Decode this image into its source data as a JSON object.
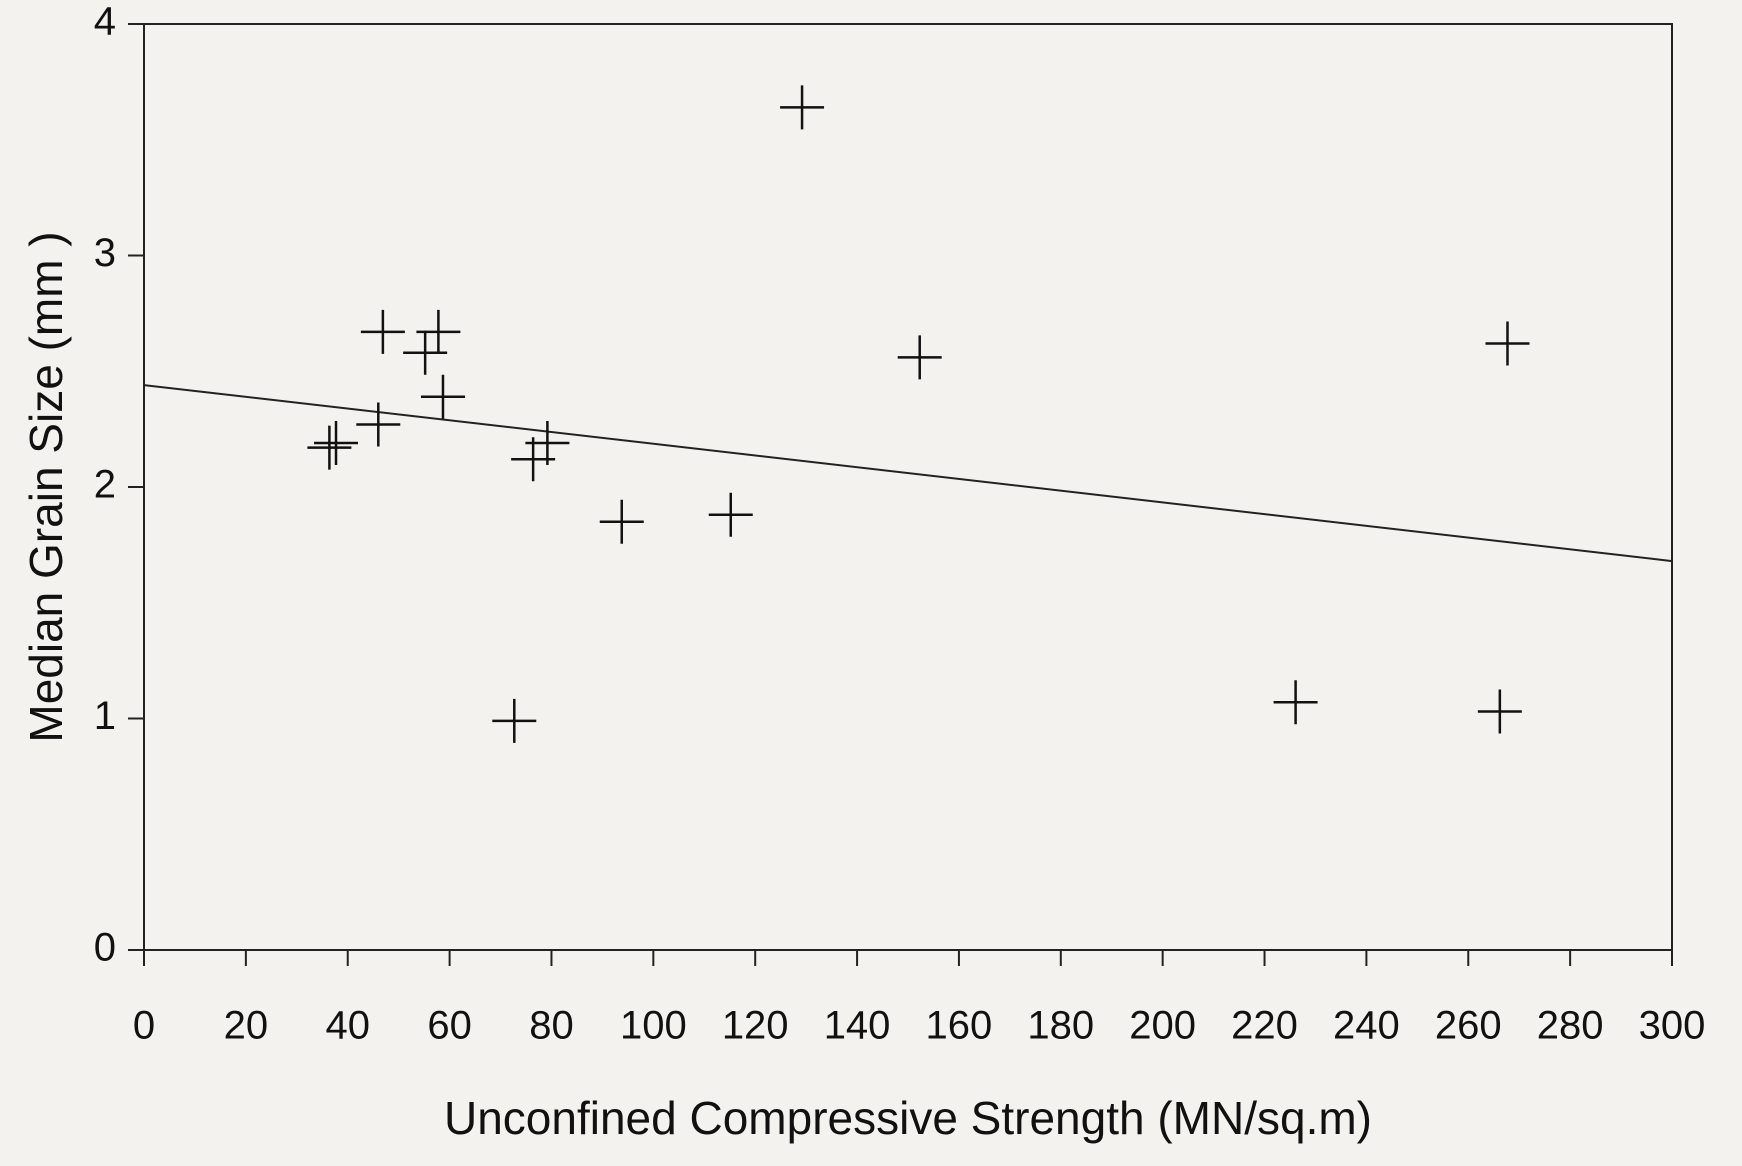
{
  "chart_data": {
    "type": "scatter",
    "x_label": "Unconfined Compressive Strength (MN/sq.m)",
    "y_label": "Median Grain Size (mm )",
    "x": [
      36.4,
      37.7,
      46.9,
      46.0,
      55.2,
      57.8,
      58.7,
      72.7,
      76.4,
      79.2,
      93.8,
      115.2,
      129.2,
      152.3,
      226.1,
      266.2,
      267.7
    ],
    "values": [
      2.17,
      2.19,
      2.67,
      2.27,
      2.58,
      2.67,
      2.39,
      0.99,
      2.12,
      2.19,
      1.85,
      1.88,
      3.64,
      2.56,
      1.07,
      1.03,
      2.62
    ],
    "color": "#111111",
    "trend_line": {
      "x": [
        0,
        300
      ],
      "y": [
        2.44,
        1.68
      ]
    },
    "xlim": [
      0,
      300
    ],
    "xticks": [
      0,
      20,
      40,
      60,
      80,
      100,
      120,
      140,
      160,
      180,
      200,
      220,
      240,
      260,
      280,
      300
    ],
    "ylim": [
      0,
      4
    ],
    "yticks": [
      0,
      1,
      2,
      3,
      4
    ],
    "grid": false
  }
}
